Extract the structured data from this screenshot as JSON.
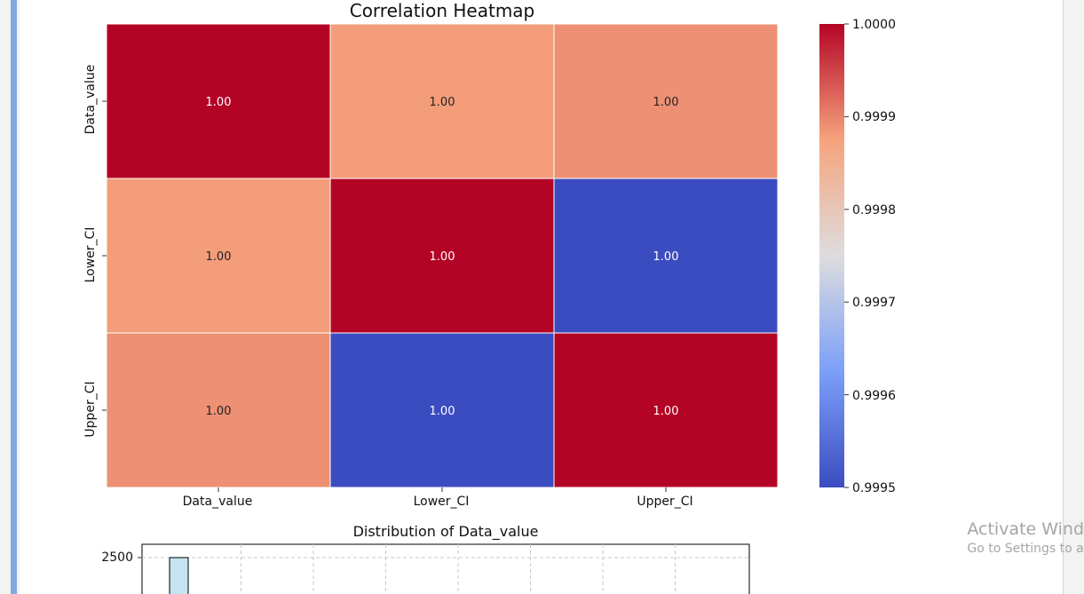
{
  "chart_data": [
    {
      "type": "heatmap",
      "title": "Correlation Heatmap",
      "x_labels": [
        "Data_value",
        "Lower_CI",
        "Upper_CI"
      ],
      "y_labels": [
        "Data_value",
        "Lower_CI",
        "Upper_CI"
      ],
      "values": [
        [
          1.0,
          0.99988,
          0.99989
        ],
        [
          0.99988,
          1.0,
          0.9995
        ],
        [
          0.99989,
          0.9995,
          1.0
        ]
      ],
      "annotations": [
        [
          "1.00",
          "1.00",
          "1.00"
        ],
        [
          "1.00",
          "1.00",
          "1.00"
        ],
        [
          "1.00",
          "1.00",
          "1.00"
        ]
      ],
      "colormap": "coolwarm",
      "colorbar": {
        "range": [
          0.9995,
          1.0
        ],
        "ticks": [
          "1.0000",
          "0.9999",
          "0.9998",
          "0.9997",
          "0.9996",
          "0.9995"
        ],
        "tick_values": [
          1.0,
          0.9999,
          0.9998,
          0.9997,
          0.9996,
          0.9995
        ]
      }
    },
    {
      "type": "bar",
      "title": "Distribution of Data_value",
      "y_ticks": [
        "2500"
      ],
      "y_tick_values": [
        2500
      ],
      "grid": true,
      "bar_color": "#c5e3f0",
      "values": [
        2500
      ]
    }
  ],
  "watermark": {
    "line1": "Activate Wind",
    "line2": "Go to Settings to a"
  }
}
